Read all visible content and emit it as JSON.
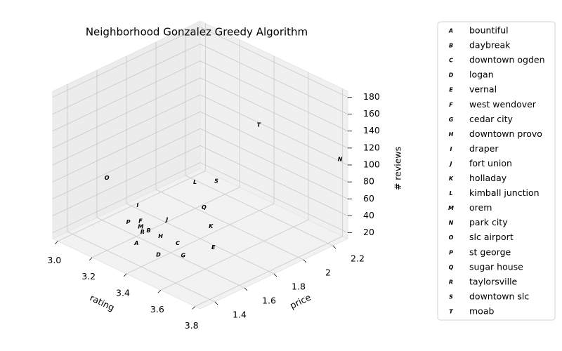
{
  "chart_data": {
    "type": "scatter3d",
    "title": "Neighborhood Gonzalez Greedy Algorithm",
    "x_label": "rating",
    "y_label": "price",
    "z_label": "# reviews",
    "xlim": [
      2.97,
      3.83
    ],
    "ylim": [
      1.3,
      2.3
    ],
    "zlim": [
      13,
      187
    ],
    "xticks": [
      {
        "value": 3.0,
        "label": "3.0"
      },
      3.2,
      3.4,
      3.6,
      3.8
    ],
    "yticks": [
      1.4,
      1.6,
      1.8,
      2.0,
      2.2
    ],
    "zticks": [
      20,
      40,
      60,
      80,
      100,
      120,
      140,
      160,
      180
    ],
    "grid": true,
    "series": [
      {
        "name": "bountiful",
        "marker": "A",
        "color": "#0000ff",
        "x": [
          3.33
        ],
        "y": [
          1.45
        ],
        "z": [
          30
        ]
      },
      {
        "name": "daybreak",
        "marker": "B",
        "color": "#0000ff",
        "x": [
          3.34
        ],
        "y": [
          1.52
        ],
        "z": [
          40
        ]
      },
      {
        "name": "downtown ogden",
        "marker": "C",
        "color": "#0000ff",
        "x": [
          3.45
        ],
        "y": [
          1.59
        ],
        "z": [
          30
        ]
      },
      {
        "name": "logan",
        "marker": "D",
        "color": "#0000ff",
        "x": [
          3.44
        ],
        "y": [
          1.47
        ],
        "z": [
          25
        ]
      },
      {
        "name": "vernal",
        "marker": "E",
        "color": "#0000ff",
        "x": [
          3.58
        ],
        "y": [
          1.68
        ],
        "z": [
          30
        ]
      },
      {
        "name": "west wendover",
        "marker": "F",
        "color": "#0000ff",
        "x": [
          3.31
        ],
        "y": [
          1.5
        ],
        "z": [
          50
        ]
      },
      {
        "name": "cedar city",
        "marker": "G",
        "color": "#ff0000",
        "x": [
          3.49
        ],
        "y": [
          1.58
        ],
        "z": [
          20
        ]
      },
      {
        "name": "downtown provo",
        "marker": "H",
        "color": "#ff0000",
        "x": [
          3.41
        ],
        "y": [
          1.52
        ],
        "z": [
          40
        ]
      },
      {
        "name": "draper",
        "marker": "I",
        "color": "#ff0000",
        "x": [
          3.31
        ],
        "y": [
          1.48
        ],
        "z": [
          70
        ]
      },
      {
        "name": "fort union",
        "marker": "J",
        "color": "#ff0000",
        "x": [
          3.43
        ],
        "y": [
          1.54
        ],
        "z": [
          60
        ]
      },
      {
        "name": "holladay",
        "marker": "K",
        "color": "#ff0000",
        "x": [
          3.6
        ],
        "y": [
          1.64
        ],
        "z": [
          60
        ]
      },
      {
        "name": "kimball junction",
        "marker": "L",
        "color": "#ff0000",
        "x": [
          3.49
        ],
        "y": [
          1.66
        ],
        "z": [
          100
        ]
      },
      {
        "name": "orem",
        "marker": "M",
        "color": "#ff0000",
        "x": [
          3.32
        ],
        "y": [
          1.49
        ],
        "z": [
          45
        ]
      },
      {
        "name": "park city",
        "marker": "N",
        "color": "#ff0000",
        "x": [
          3.82
        ],
        "y": [
          2.26
        ],
        "z": [
          109
        ]
      },
      {
        "name": "slc airport",
        "marker": "O",
        "color": "#ff0000",
        "x": [
          3.26
        ],
        "y": [
          1.33
        ],
        "z": [
          110
        ]
      },
      {
        "name": "st george",
        "marker": "P",
        "color": "#ff0000",
        "x": [
          3.23
        ],
        "y": [
          1.51
        ],
        "z": [
          40
        ]
      },
      {
        "name": "sugar house",
        "marker": "Q",
        "color": "#ff0000",
        "x": [
          3.62
        ],
        "y": [
          1.57
        ],
        "z": [
          90
        ]
      },
      {
        "name": "taylorsville",
        "marker": "R",
        "color": "#ff0000",
        "x": [
          3.33
        ],
        "y": [
          1.49
        ],
        "z": [
          40
        ]
      },
      {
        "name": "downtown slc",
        "marker": "S",
        "color": "#008000",
        "x": [
          3.52
        ],
        "y": [
          1.77
        ],
        "z": [
          95
        ]
      },
      {
        "name": "moab",
        "marker": "T",
        "color": "#008000",
        "x": [
          3.69
        ],
        "y": [
          1.86
        ],
        "z": [
          170
        ]
      }
    ]
  }
}
